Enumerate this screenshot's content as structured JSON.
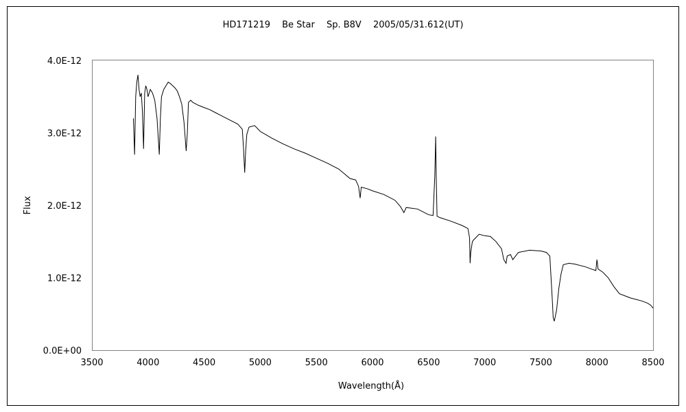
{
  "chart_data": {
    "type": "line",
    "title": "HD171219　 Be Star　 Sp. B8V　 2005/05/31.612(UT)",
    "xlabel": "Wavelength(Å)",
    "ylabel": "Flux",
    "xlim": [
      3500,
      8500
    ],
    "ylim": [
      0,
      4e-12
    ],
    "x_ticks": [
      3500,
      4000,
      4500,
      5000,
      5500,
      6000,
      6500,
      7000,
      7500,
      8000,
      8500
    ],
    "x_tick_labels": [
      "3500",
      "4000",
      "4500",
      "5000",
      "5500",
      "6000",
      "6500",
      "7000",
      "7500",
      "8000",
      "8500"
    ],
    "y_ticks": [
      0,
      1e-12,
      2e-12,
      3e-12,
      4e-12
    ],
    "y_tick_labels": [
      "0.0E+00",
      "1.0E-12",
      "2.0E-12",
      "3.0E-12",
      "4.0E-12"
    ],
    "grid": false,
    "legend": "none",
    "line_color": "#000000",
    "series": [
      {
        "x": [
          3870,
          3880,
          3890,
          3900,
          3910,
          3920,
          3930,
          3940,
          3950,
          3960,
          3970,
          3980,
          3990,
          4000,
          4020,
          4040,
          4060,
          4080,
          4100,
          4110,
          4120,
          4140,
          4160,
          4180,
          4200,
          4220,
          4240,
          4260,
          4280,
          4300,
          4320,
          4340,
          4350,
          4360,
          4380,
          4400,
          4450,
          4500,
          4550,
          4600,
          4650,
          4700,
          4750,
          4800,
          4840,
          4850,
          4861,
          4870,
          4880,
          4900,
          4950,
          5000,
          5100,
          5200,
          5300,
          5400,
          5500,
          5600,
          5700,
          5800,
          5850,
          5876,
          5890,
          5900,
          5950,
          6000,
          6100,
          6200,
          6250,
          6280,
          6300,
          6400,
          6500,
          6540,
          6555,
          6563,
          6568,
          6575,
          6600,
          6700,
          6800,
          6850,
          6865,
          6870,
          6875,
          6890,
          6900,
          6950,
          7000,
          7050,
          7100,
          7150,
          7170,
          7190,
          7200,
          7230,
          7250,
          7300,
          7400,
          7500,
          7550,
          7580,
          7600,
          7610,
          7620,
          7640,
          7660,
          7680,
          7700,
          7750,
          7800,
          7900,
          7950,
          7990,
          8000,
          8010,
          8050,
          8100,
          8150,
          8200,
          8250,
          8300,
          8350,
          8400,
          8450,
          8480,
          8500
        ],
        "y": [
          3.2e-12,
          2.7e-12,
          3.5e-12,
          3.7e-12,
          3.8e-12,
          3.6e-12,
          3.5e-12,
          3.55e-12,
          3.3e-12,
          2.78e-12,
          3.55e-12,
          3.65e-12,
          3.6e-12,
          3.5e-12,
          3.6e-12,
          3.55e-12,
          3.45e-12,
          3.2e-12,
          2.7e-12,
          3.2e-12,
          3.5e-12,
          3.6e-12,
          3.65e-12,
          3.7e-12,
          3.68e-12,
          3.65e-12,
          3.62e-12,
          3.58e-12,
          3.5e-12,
          3.4e-12,
          3.15e-12,
          2.75e-12,
          3e-12,
          3.42e-12,
          3.45e-12,
          3.42e-12,
          3.38e-12,
          3.35e-12,
          3.32e-12,
          3.28e-12,
          3.24e-12,
          3.2e-12,
          3.16e-12,
          3.12e-12,
          3.05e-12,
          2.8e-12,
          2.45e-12,
          2.75e-12,
          2.98e-12,
          3.08e-12,
          3.1e-12,
          3.02e-12,
          2.93e-12,
          2.85e-12,
          2.78e-12,
          2.72e-12,
          2.65e-12,
          2.58e-12,
          2.5e-12,
          2.37e-12,
          2.35e-12,
          2.26e-12,
          2.1e-12,
          2.25e-12,
          2.23e-12,
          2.2e-12,
          2.15e-12,
          2.07e-12,
          1.98e-12,
          1.9e-12,
          1.97e-12,
          1.95e-12,
          1.87e-12,
          1.86e-12,
          2.4e-12,
          2.95e-12,
          2.4e-12,
          1.85e-12,
          1.83e-12,
          1.78e-12,
          1.72e-12,
          1.68e-12,
          1.55e-12,
          1.2e-12,
          1.35e-12,
          1.5e-12,
          1.52e-12,
          1.6e-12,
          1.58e-12,
          1.57e-12,
          1.5e-12,
          1.4e-12,
          1.25e-12,
          1.2e-12,
          1.3e-12,
          1.32e-12,
          1.25e-12,
          1.35e-12,
          1.38e-12,
          1.37e-12,
          1.35e-12,
          1.3e-12,
          7.5e-13,
          4.5e-13,
          4e-13,
          5.5e-13,
          8.5e-13,
          1.05e-12,
          1.18e-12,
          1.2e-12,
          1.19e-12,
          1.15e-12,
          1.12e-12,
          1.1e-12,
          1.25e-12,
          1.12e-12,
          1.08e-12,
          1e-12,
          8.8e-13,
          7.8e-13,
          7.5e-13,
          7.2e-13,
          7e-13,
          6.8e-13,
          6.5e-13,
          6.2e-13,
          5.8e-13
        ]
      }
    ]
  }
}
